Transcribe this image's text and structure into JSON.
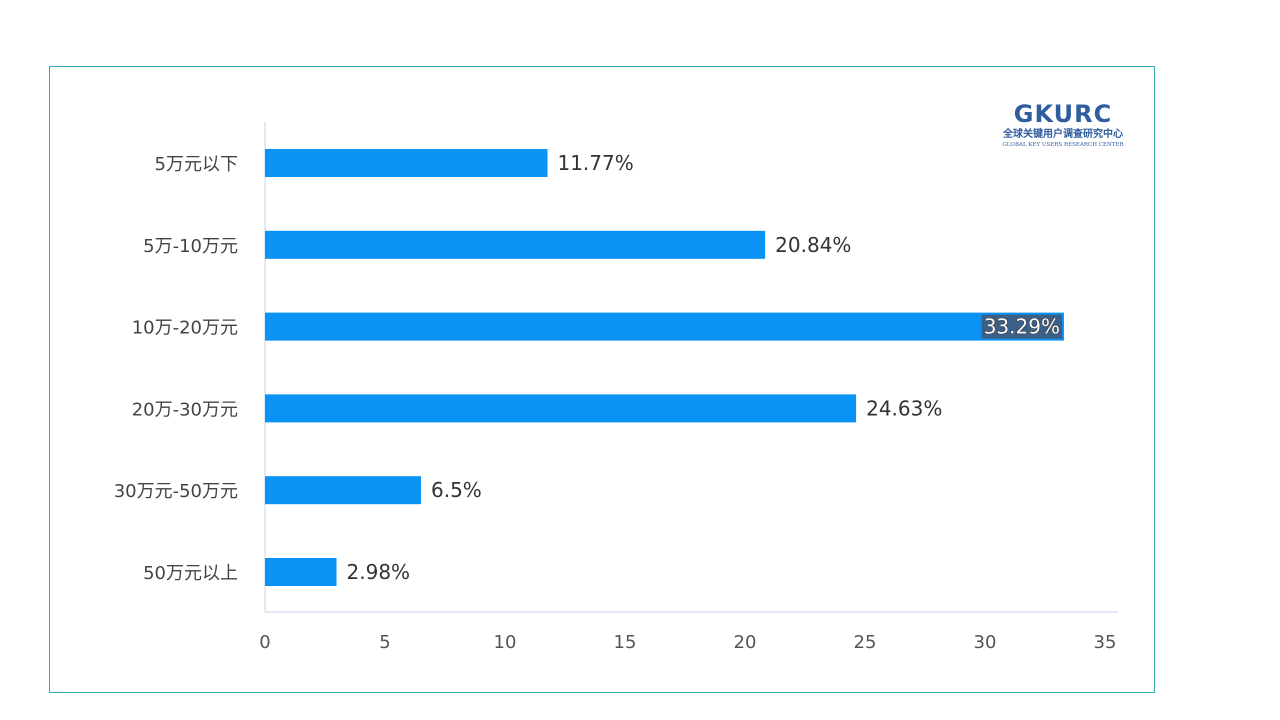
{
  "chart_data": {
    "type": "bar",
    "orientation": "horizontal",
    "categories": [
      "5万元以下",
      "5万-10万元",
      "10万-20万元",
      "20万-30万元",
      "30万元-50万元",
      "50万元以上"
    ],
    "values": [
      11.77,
      20.84,
      33.29,
      24.63,
      6.5,
      2.98
    ],
    "value_labels": [
      "11.77%",
      "20.84%",
      "33.29%",
      "24.63%",
      "6.5%",
      "2.98%"
    ],
    "xlim": [
      0,
      35
    ],
    "xticks": [
      0,
      5,
      10,
      15,
      20,
      25,
      30,
      35
    ],
    "grid": false,
    "bar_color": "#0a93f5",
    "highlighted_label_index": 2
  },
  "logo": {
    "main": "GKURC",
    "chinese": "全球关键用户调查研究中心",
    "english": "GLOBAL KEY USERS RESEARCH CENTER"
  }
}
